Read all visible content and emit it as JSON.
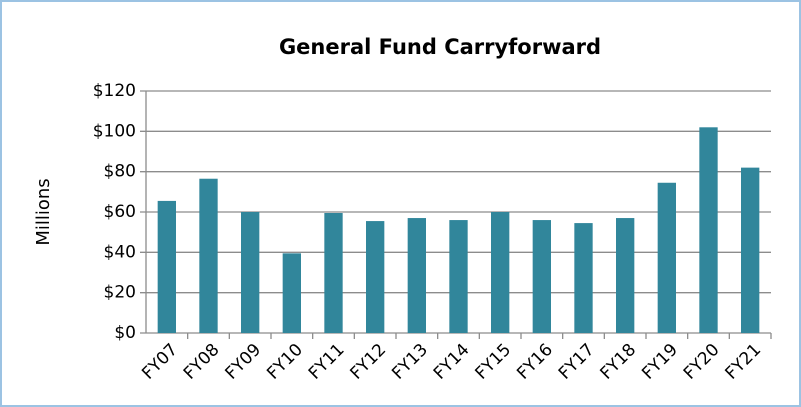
{
  "chart_data": {
    "type": "bar",
    "title": "General Fund Carryforward",
    "y_label": "Millions",
    "categories": [
      "FY07",
      "FY08",
      "FY09",
      "FY10",
      "FY11",
      "FY12",
      "FY13",
      "FY14",
      "FY15",
      "FY16",
      "FY17",
      "FY18",
      "FY19",
      "FY20",
      "FY21"
    ],
    "values": [
      65.5,
      76.5,
      60,
      39.5,
      59.5,
      55.5,
      57,
      56,
      60,
      56,
      54.5,
      57,
      74.5,
      102,
      82
    ],
    "color": "#31869b",
    "ylim": [
      0,
      120
    ],
    "yticks": [
      {
        "value": 0,
        "label": "$0"
      },
      {
        "value": 20,
        "label": "$20"
      },
      {
        "value": 40,
        "label": "$40"
      },
      {
        "value": 60,
        "label": "$60"
      },
      {
        "value": 80,
        "label": "$80"
      },
      {
        "value": 100,
        "label": "$100"
      },
      {
        "value": 120,
        "label": "$120"
      }
    ],
    "grid": true
  }
}
